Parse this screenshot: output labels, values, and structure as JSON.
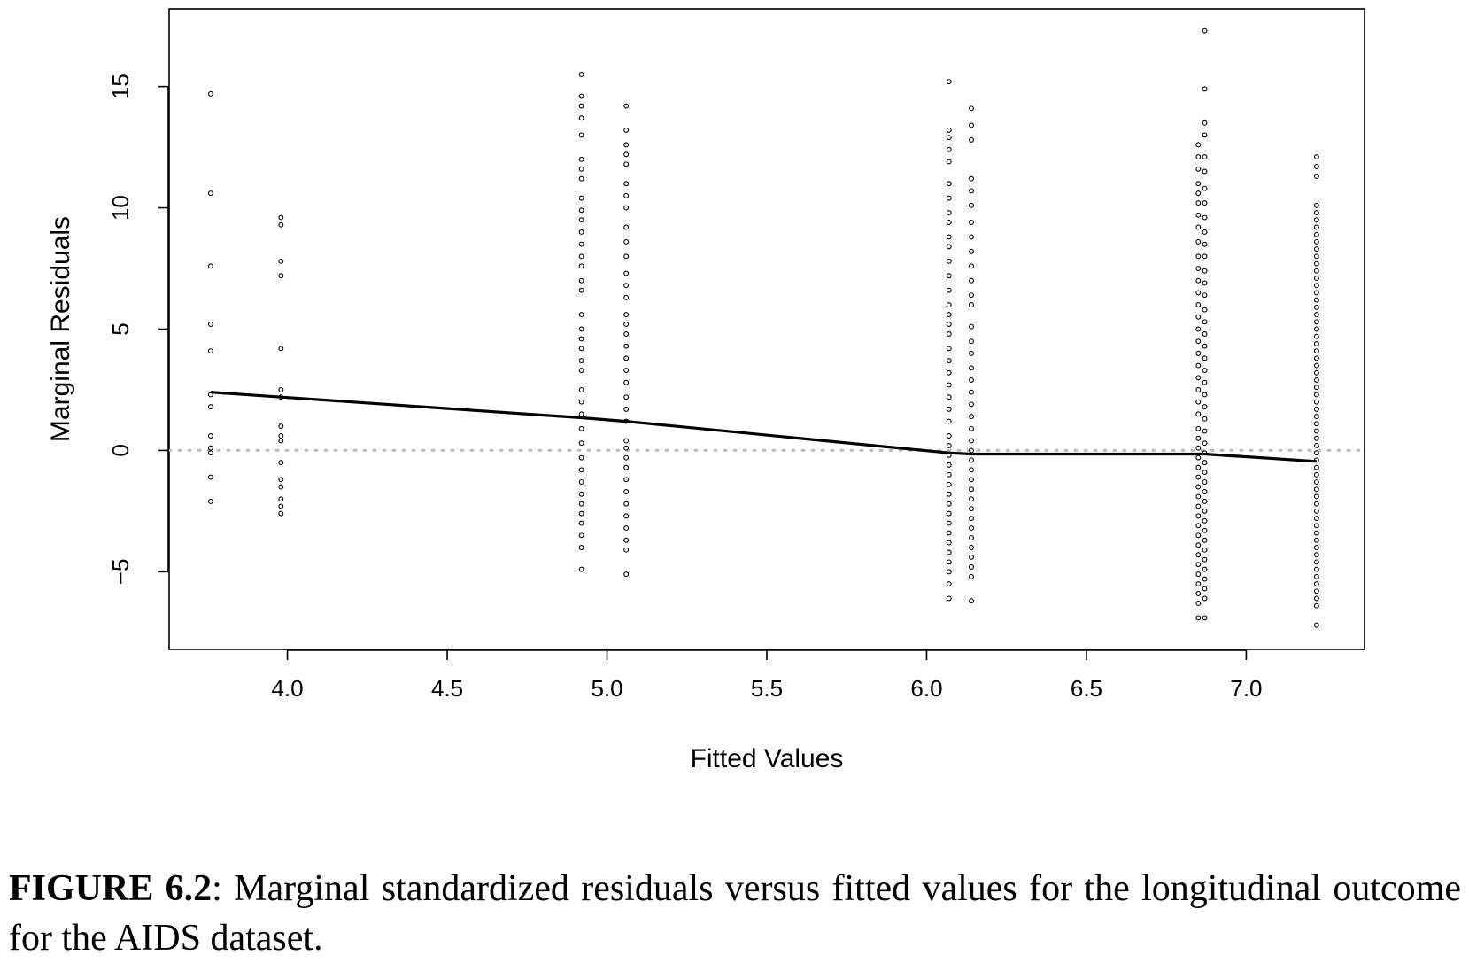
{
  "chart_data": {
    "type": "scatter",
    "xlabel": "Fitted Values",
    "ylabel": "Marginal Residuals",
    "xlim": [
      3.63,
      7.37
    ],
    "ylim": [
      -8.2,
      18.2
    ],
    "x_ticks": [
      "4.0",
      "4.5",
      "5.0",
      "5.5",
      "6.0",
      "6.5",
      "7.0"
    ],
    "x_tick_values": [
      4.0,
      4.5,
      5.0,
      5.5,
      6.0,
      6.5,
      7.0
    ],
    "y_ticks": [
      "−5",
      "0",
      "5",
      "10",
      "15"
    ],
    "y_tick_values": [
      -5,
      0,
      5,
      10,
      15
    ],
    "reference_line": {
      "y": 0,
      "style": "dotted",
      "color": "#bbbbbb"
    },
    "series": [
      {
        "type": "points",
        "groups": [
          {
            "x": 3.76,
            "residuals": [
              14.7,
              10.6,
              7.6,
              5.2,
              4.1,
              2.3,
              1.8,
              0.6,
              0.1,
              -0.1,
              -1.1,
              -2.1
            ]
          },
          {
            "x": 3.98,
            "residuals": [
              9.6,
              9.3,
              7.8,
              7.2,
              4.2,
              2.5,
              2.2,
              1.0,
              0.6,
              0.4,
              -0.5,
              -1.2,
              -1.5,
              -2.0,
              -2.3,
              -2.6
            ]
          },
          {
            "x": 4.92,
            "residuals": [
              15.5,
              14.6,
              14.2,
              13.7,
              13.0,
              12.0,
              11.6,
              11.2,
              10.4,
              9.9,
              9.5,
              9.0,
              8.5,
              8.0,
              7.6,
              7.0,
              6.6,
              5.6,
              5.0,
              4.6,
              4.2,
              3.7,
              3.3,
              2.5,
              2.0,
              1.5,
              0.9,
              0.3,
              -0.3,
              -0.8,
              -1.3,
              -1.8,
              -2.2,
              -2.6,
              -3.0,
              -3.5,
              -4.0,
              -4.9
            ]
          },
          {
            "x": 5.06,
            "residuals": [
              14.2,
              13.2,
              12.6,
              12.2,
              11.8,
              11.0,
              10.5,
              10.0,
              9.2,
              8.6,
              8.0,
              7.3,
              6.8,
              6.3,
              5.6,
              5.2,
              4.8,
              4.3,
              3.8,
              3.3,
              2.8,
              2.2,
              1.7,
              1.2,
              0.4,
              0.1,
              -0.3,
              -0.7,
              -1.2,
              -1.7,
              -2.2,
              -2.7,
              -3.2,
              -3.7,
              -4.1,
              -5.1
            ]
          },
          {
            "x": 6.07,
            "residuals": [
              15.2,
              13.2,
              12.9,
              12.4,
              11.9,
              11.0,
              10.4,
              9.8,
              9.4,
              8.8,
              8.4,
              7.8,
              7.2,
              6.6,
              6.0,
              5.6,
              5.2,
              4.8,
              4.2,
              3.7,
              3.2,
              2.7,
              2.2,
              1.7,
              1.2,
              0.6,
              0.2,
              -0.2,
              -0.6,
              -1.0,
              -1.4,
              -1.8,
              -2.2,
              -2.6,
              -3.0,
              -3.4,
              -3.8,
              -4.2,
              -4.6,
              -5.0,
              -5.5,
              -6.1
            ]
          },
          {
            "x": 6.14,
            "residuals": [
              14.1,
              13.4,
              12.8,
              11.2,
              10.7,
              10.1,
              9.4,
              8.8,
              8.2,
              7.6,
              7.0,
              6.4,
              6.0,
              5.1,
              4.5,
              4.0,
              3.4,
              2.9,
              2.4,
              1.9,
              1.4,
              0.9,
              0.4,
              0.0,
              -0.4,
              -0.8,
              -1.2,
              -1.6,
              -2.0,
              -2.4,
              -2.8,
              -3.2,
              -3.6,
              -4.0,
              -4.4,
              -4.8,
              -5.2,
              -6.2
            ]
          },
          {
            "x": 6.85,
            "residuals": [
              12.6,
              12.1,
              11.6,
              11.0,
              10.6,
              10.2,
              9.7,
              9.2,
              8.6,
              8.0,
              7.5,
              7.0,
              6.5,
              6.0,
              5.5,
              5.0,
              4.5,
              4.0,
              3.5,
              3.0,
              2.5,
              2.0,
              1.5,
              0.9,
              0.5,
              0.1,
              -0.3,
              -0.7,
              -1.1,
              -1.5,
              -1.9,
              -2.3,
              -2.7,
              -3.1,
              -3.5,
              -3.9,
              -4.3,
              -4.7,
              -5.1,
              -5.5,
              -5.9,
              -6.3,
              -6.9
            ]
          },
          {
            "x": 6.87,
            "residuals": [
              17.3,
              14.9,
              13.5,
              13.0,
              12.1,
              11.5,
              10.8,
              10.2,
              9.6,
              9.0,
              8.5,
              8.0,
              7.4,
              6.9,
              6.4,
              5.8,
              5.3,
              4.8,
              4.3,
              3.8,
              3.3,
              2.8,
              2.3,
              1.8,
              1.3,
              0.8,
              0.3,
              -0.1,
              -0.5,
              -0.9,
              -1.3,
              -1.7,
              -2.1,
              -2.5,
              -2.9,
              -3.3,
              -3.7,
              -4.1,
              -4.5,
              -4.9,
              -5.3,
              -5.7,
              -6.1,
              -6.9
            ]
          },
          {
            "x": 7.22,
            "residuals": [
              12.1,
              11.7,
              11.3,
              10.1,
              9.8,
              9.5,
              9.2,
              8.9,
              8.6,
              8.3,
              8.0,
              7.7,
              7.4,
              7.1,
              6.8,
              6.5,
              6.2,
              5.9,
              5.6,
              5.3,
              5.0,
              4.7,
              4.4,
              4.1,
              3.8,
              3.5,
              3.2,
              2.9,
              2.6,
              2.3,
              2.0,
              1.7,
              1.4,
              1.1,
              0.8,
              0.5,
              0.2,
              -0.1,
              -0.4,
              -0.7,
              -1.0,
              -1.3,
              -1.6,
              -1.9,
              -2.2,
              -2.5,
              -2.8,
              -3.1,
              -3.4,
              -3.7,
              -4.0,
              -4.3,
              -4.6,
              -4.9,
              -5.2,
              -5.5,
              -5.8,
              -6.1,
              -6.4,
              -7.2
            ]
          }
        ]
      },
      {
        "type": "line",
        "x": [
          3.76,
          3.98,
          4.92,
          5.06,
          6.07,
          6.14,
          6.85,
          6.87,
          7.22
        ],
        "y": [
          2.4,
          2.2,
          1.35,
          1.2,
          -0.1,
          -0.15,
          -0.15,
          -0.15,
          -0.45
        ]
      }
    ]
  },
  "caption": {
    "label": "FIGURE 6.2",
    "text": ": Marginal standardized residuals versus fitted values for the longitudinal outcome for the AIDS dataset."
  }
}
